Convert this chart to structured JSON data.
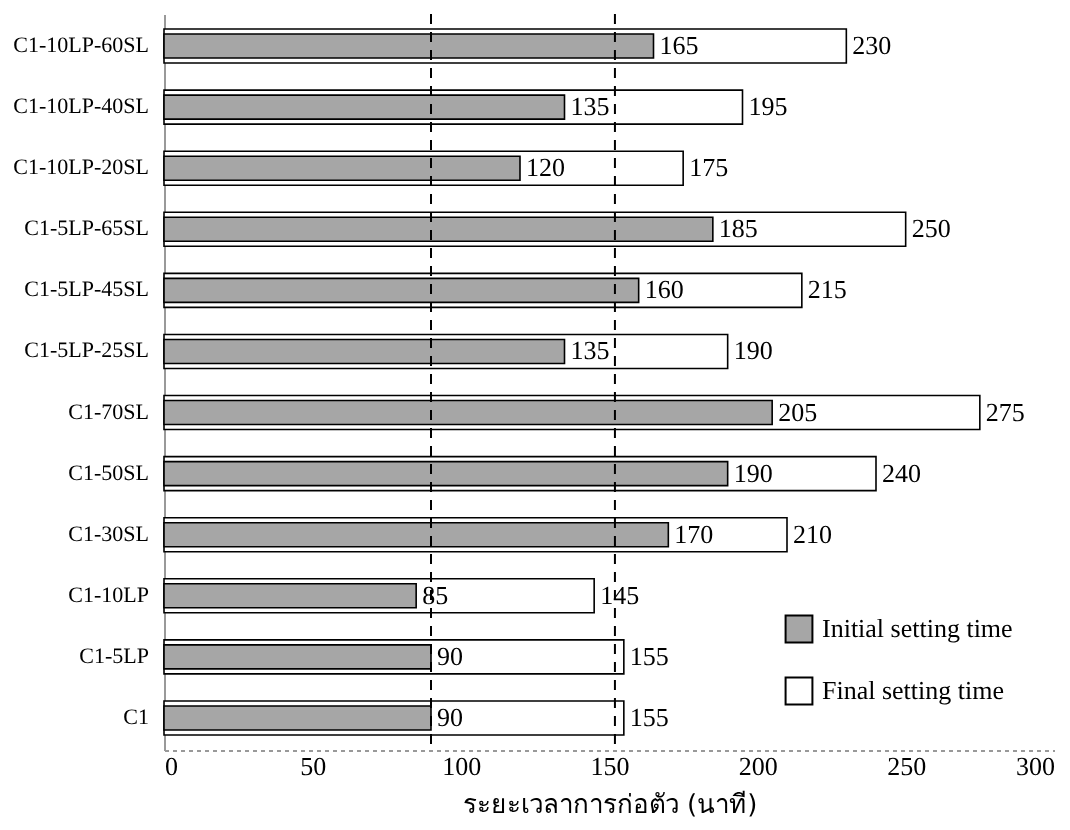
{
  "chart_data": {
    "type": "bar",
    "orientation": "horizontal",
    "xlabel": "ระยะเวลาการก่อตัว (นาที)",
    "categories": [
      "C1-10LP-60SL",
      "C1-10LP-40SL",
      "C1-10LP-20SL",
      "C1-5LP-65SL",
      "C1-5LP-45SL",
      "C1-5LP-25SL",
      "C1-70SL",
      "C1-50SL",
      "C1-30SL",
      "C1-10LP",
      "C1-5LP",
      "C1"
    ],
    "series": [
      {
        "name": "Initial setting time",
        "color": "#a6a6a6",
        "values": [
          165,
          135,
          120,
          185,
          160,
          135,
          205,
          190,
          170,
          85,
          90,
          90
        ]
      },
      {
        "name": "Final setting time",
        "color": "#ffffff",
        "values": [
          230,
          195,
          175,
          250,
          215,
          190,
          275,
          240,
          210,
          145,
          155,
          155
        ]
      }
    ],
    "xlim": [
      0,
      300
    ],
    "xticks": [
      0,
      50,
      100,
      150,
      200,
      250,
      300
    ],
    "data_labels": true,
    "legend": "bottom right",
    "ref_lines": [
      {
        "axis": "x",
        "value": 90,
        "line_style": "dashed"
      },
      {
        "axis": "x",
        "value": 152,
        "line_style": "dashed"
      }
    ]
  }
}
